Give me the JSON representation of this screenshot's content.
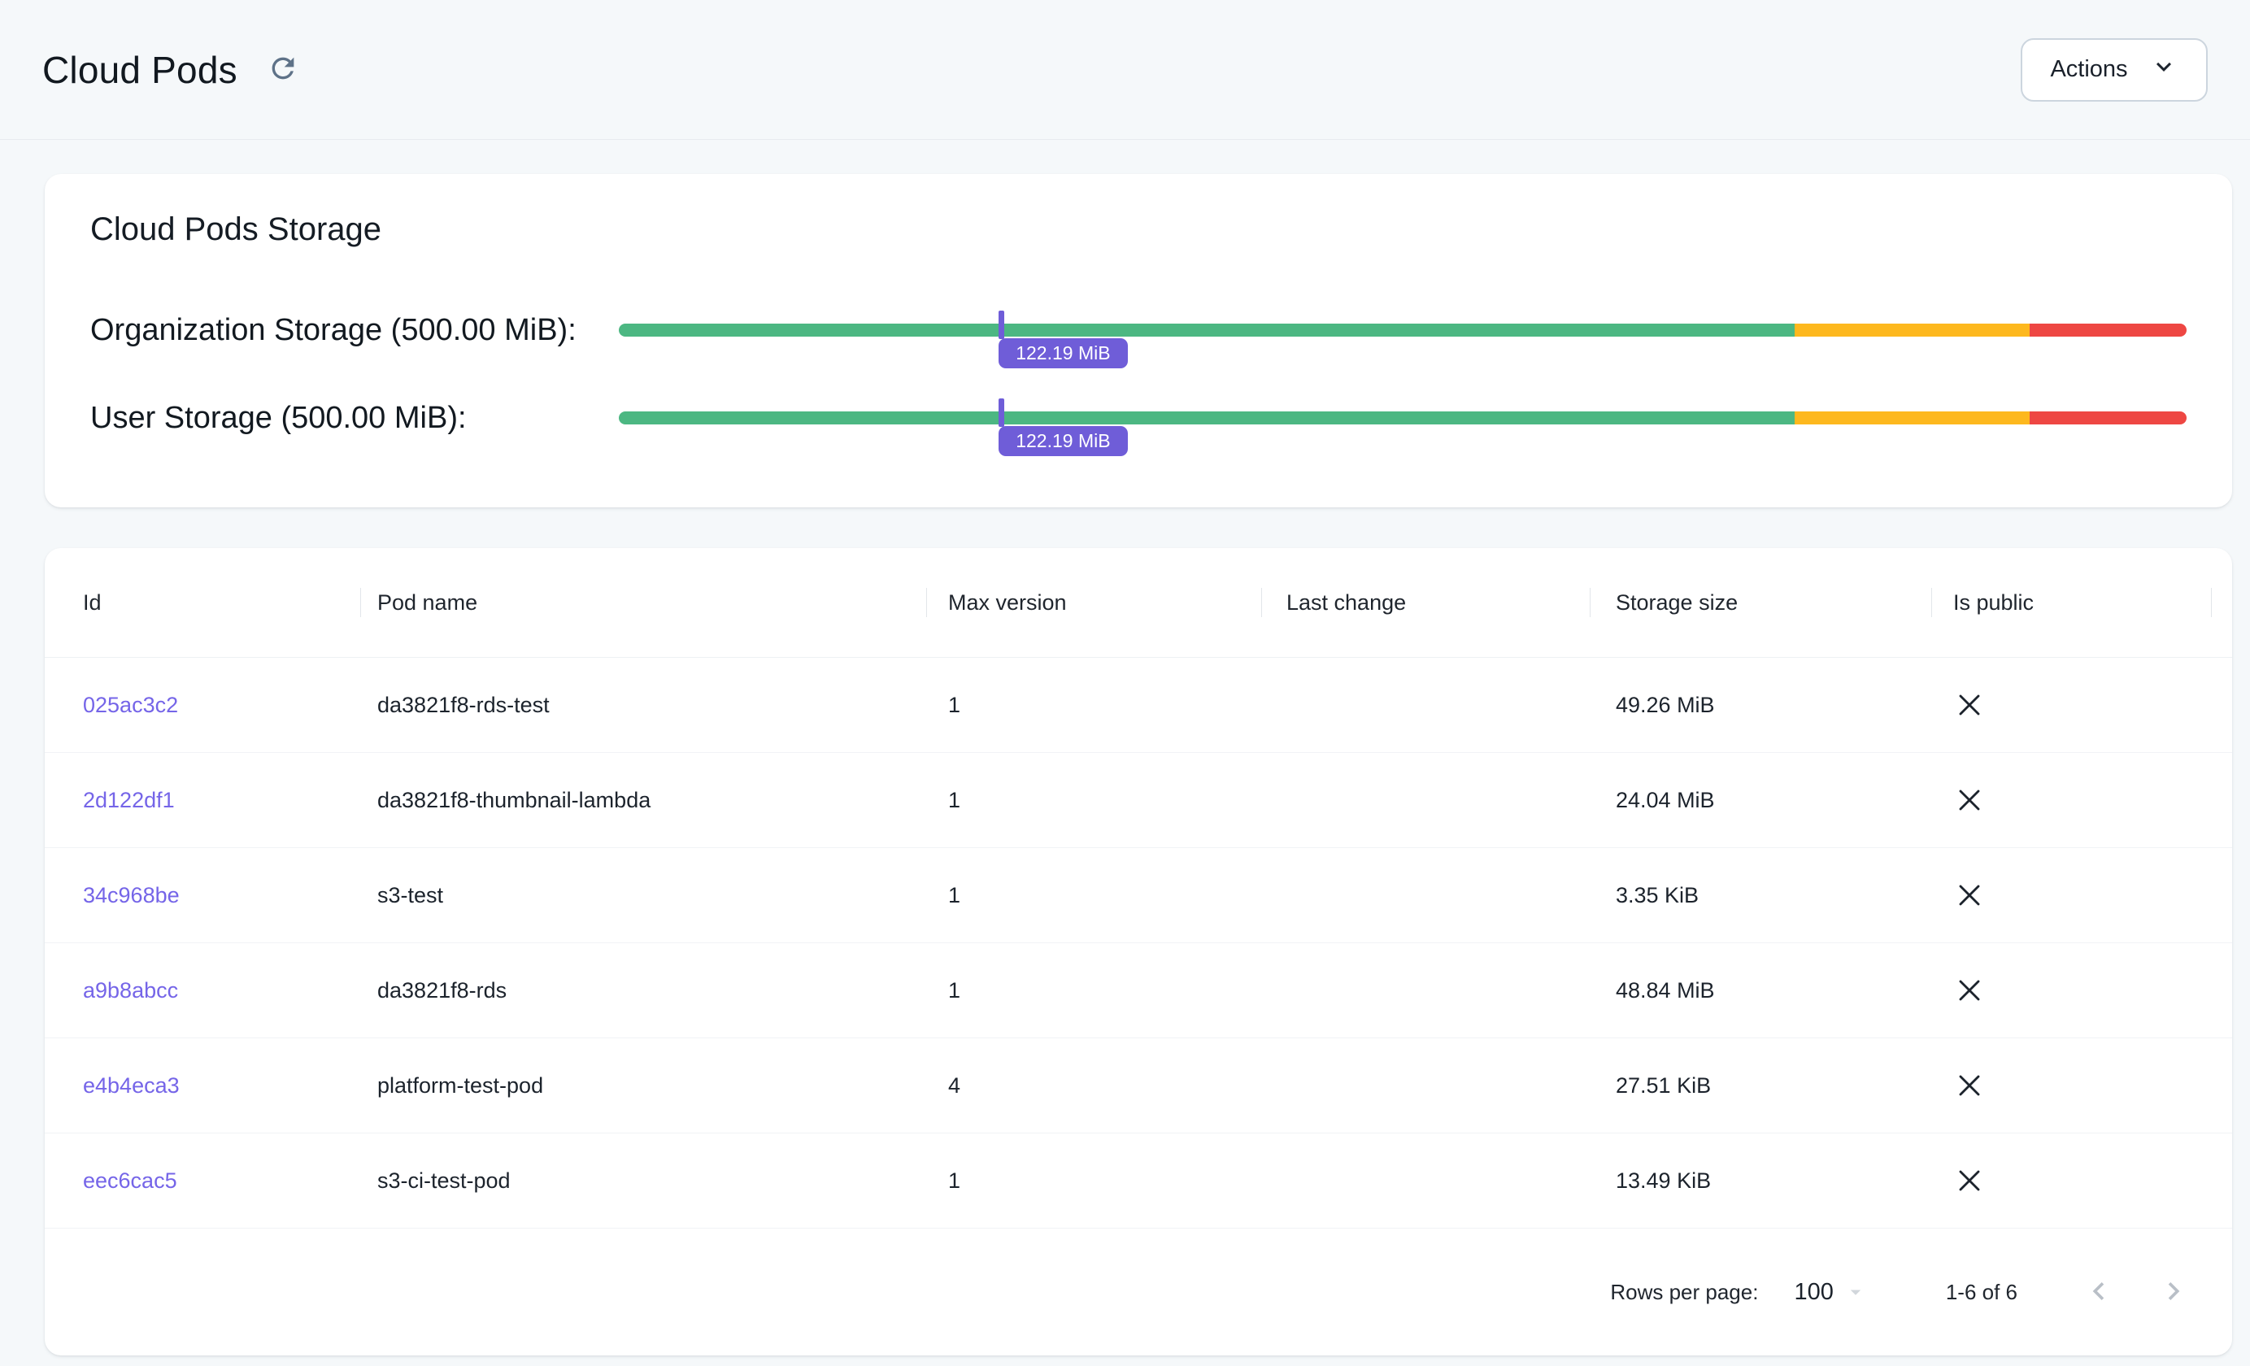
{
  "header": {
    "title": "Cloud Pods",
    "actions_button": {
      "label": "Actions"
    }
  },
  "storage_card": {
    "title": "Cloud Pods Storage",
    "bars": [
      {
        "label": "Organization Storage (500.00 MiB):",
        "tooltip": "122.19 MiB",
        "used_percent": 24.44,
        "segments": [
          {
            "name": "ok",
            "color": "#4cb782",
            "percent": 75
          },
          {
            "name": "warning",
            "color": "#fdb81e",
            "percent": 15
          },
          {
            "name": "critical",
            "color": "#ee4743",
            "percent": 10
          }
        ]
      },
      {
        "label": "User Storage (500.00 MiB):",
        "tooltip": "122.19 MiB",
        "used_percent": 24.44,
        "segments": [
          {
            "name": "ok",
            "color": "#4cb782",
            "percent": 75
          },
          {
            "name": "warning",
            "color": "#fdb81e",
            "percent": 15
          },
          {
            "name": "critical",
            "color": "#ee4743",
            "percent": 10
          }
        ]
      }
    ]
  },
  "table": {
    "columns": [
      "Id",
      "Pod name",
      "Max version",
      "Last change",
      "Storage size",
      "Is public"
    ],
    "rows": [
      {
        "id": "025ac3c2",
        "pod_name": "da3821f8-rds-test",
        "max_version": "1",
        "last_change": "",
        "storage_size": "49.26 MiB",
        "is_public": false
      },
      {
        "id": "2d122df1",
        "pod_name": "da3821f8-thumbnail-lambda",
        "max_version": "1",
        "last_change": "",
        "storage_size": "24.04 MiB",
        "is_public": false
      },
      {
        "id": "34c968be",
        "pod_name": "s3-test",
        "max_version": "1",
        "last_change": "",
        "storage_size": "3.35 KiB",
        "is_public": false
      },
      {
        "id": "a9b8abcc",
        "pod_name": "da3821f8-rds",
        "max_version": "1",
        "last_change": "",
        "storage_size": "48.84 MiB",
        "is_public": false
      },
      {
        "id": "e4b4eca3",
        "pod_name": "platform-test-pod",
        "max_version": "4",
        "last_change": "",
        "storage_size": "27.51 KiB",
        "is_public": false
      },
      {
        "id": "eec6cac5",
        "pod_name": "s3-ci-test-pod",
        "max_version": "1",
        "last_change": "",
        "storage_size": "13.49 KiB",
        "is_public": false
      }
    ],
    "pagination": {
      "rows_per_page_label": "Rows per page:",
      "rows_per_page": "100",
      "range": "1-6 of 6"
    }
  },
  "colors": {
    "accent_purple": "#6f5dd8",
    "link_purple": "#7565e8",
    "bar_green": "#4cb782",
    "bar_yellow": "#fdb81e",
    "bar_red": "#ee4743",
    "page_background": "#f5f8fa"
  }
}
